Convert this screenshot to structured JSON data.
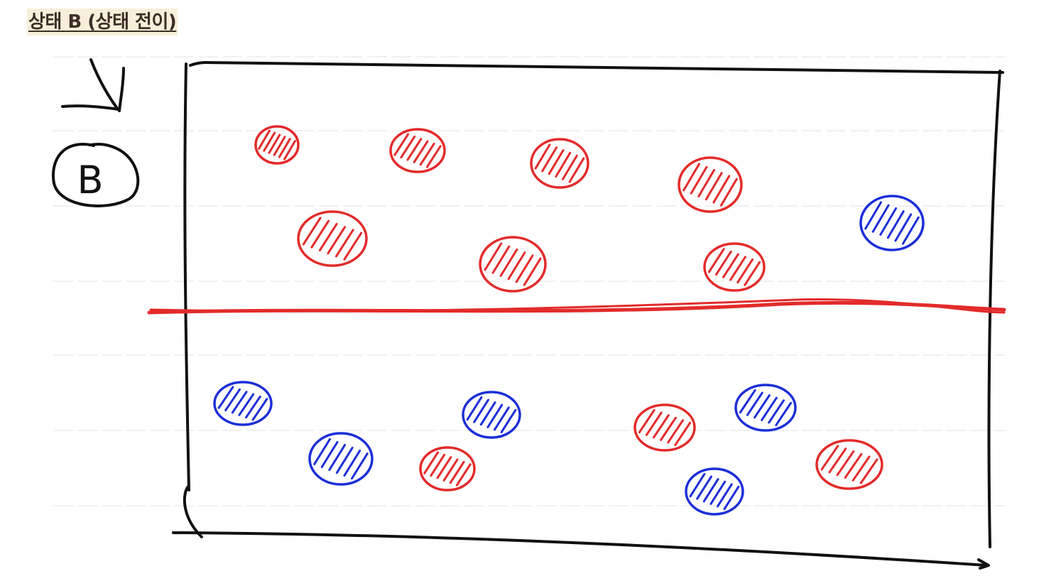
{
  "heading": {
    "text": "상태 B (상태 전이)"
  },
  "state_label": "B",
  "colors": {
    "ink": "#111111",
    "red": "#e32b2b",
    "blue": "#1c2fd8",
    "heading_highlight": "#f7efd9"
  },
  "particles": {
    "upper": [
      {
        "color": "red"
      },
      {
        "color": "red"
      },
      {
        "color": "red"
      },
      {
        "color": "red"
      },
      {
        "color": "red"
      },
      {
        "color": "red"
      },
      {
        "color": "red"
      },
      {
        "color": "blue"
      }
    ],
    "lower": [
      {
        "color": "blue"
      },
      {
        "color": "blue"
      },
      {
        "color": "red"
      },
      {
        "color": "blue"
      },
      {
        "color": "red"
      },
      {
        "color": "blue"
      },
      {
        "color": "blue"
      },
      {
        "color": "red"
      }
    ]
  },
  "counts": {
    "upper": {
      "red": 7,
      "blue": 1
    },
    "lower": {
      "red": 3,
      "blue": 5
    }
  }
}
